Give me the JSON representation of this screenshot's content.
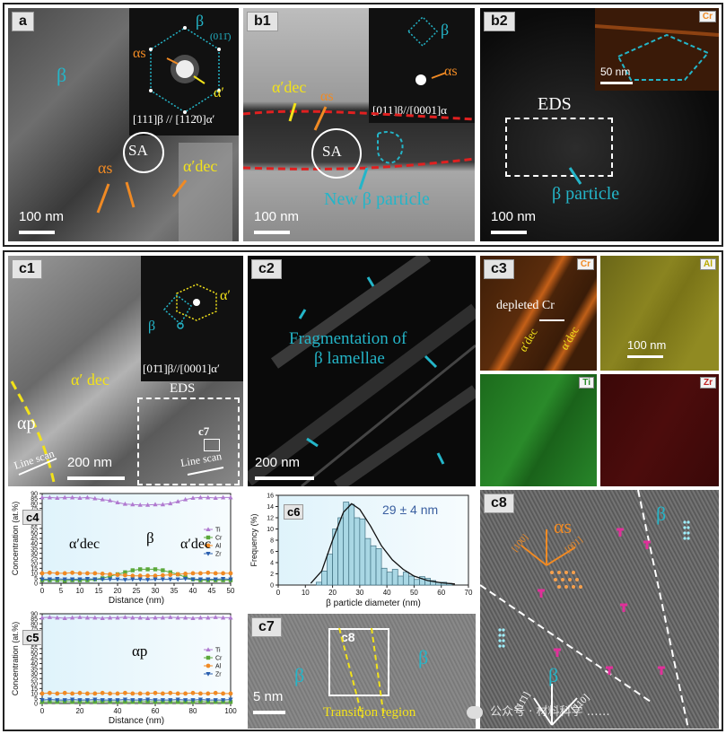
{
  "panels": {
    "a": {
      "tag": "a",
      "phase_beta": "β",
      "sa": "SA",
      "alpha_s": "αs",
      "alpha_prime": "α′",
      "alpha_dec": "α′dec",
      "saed_beta": "β",
      "saed_plane": "(011̄)",
      "saed_zone": "[111]β // [112̄0]α′",
      "scale": "100 nm"
    },
    "b1": {
      "tag": "b1",
      "alpha_dec": "α′dec",
      "alpha_s": "αs",
      "sa": "SA",
      "new_beta": "New β particle",
      "saed_beta": "β",
      "saed_alpha_s": "αs",
      "saed_zone": "[011]β//[0001]α",
      "scale": "100 nm"
    },
    "b2": {
      "tag": "b2",
      "eds": "EDS",
      "beta_particle": "β particle",
      "inset_element": "Cr",
      "inset_scale": "50 nm",
      "scale": "100 nm"
    },
    "c1": {
      "tag": "c1",
      "alpha_dec": "α′ dec",
      "alpha_p": "αp",
      "eds": "EDS",
      "c7": "c7",
      "line_scan": "Line scan",
      "line_scan_2": "Line scan",
      "saed_alpha": "α′",
      "saed_beta": "β",
      "saed_zone": "[01̄1]β//[0001]α′",
      "scale": "200 nm"
    },
    "c2": {
      "tag": "c2",
      "caption_line1": "Fragmentation of",
      "caption_line2": "β lamellae",
      "scale": "200 nm"
    },
    "c3": {
      "tag": "c3",
      "depleted": "depleted Cr",
      "alpha_dec_1": "α′dec",
      "alpha_dec_2": "α′dec",
      "elements": [
        "Cr",
        "Al",
        "Ti",
        "Zr"
      ],
      "scale": "100 nm"
    },
    "c4": {
      "tag": "c4",
      "lbl_left": "α′dec",
      "lbl_mid": "β",
      "lbl_right": "α′dec"
    },
    "c5": {
      "tag": "c5",
      "lbl_mid": "αp"
    },
    "c6": {
      "tag": "c6",
      "annotation": "29 ± 4 nm"
    },
    "c7": {
      "tag": "c7",
      "inner": "c8",
      "beta_left": "β",
      "beta_right": "β",
      "transition": "Transition region",
      "scale": "5 nm"
    },
    "c8": {
      "tag": "c8",
      "alpha_s": "αs",
      "beta_top": "β",
      "beta_bottom": "β",
      "dir1": "[100]",
      "dir2": "[001]",
      "dir3": "[11̄1]",
      "dir4": "[110]"
    },
    "watermark": "公众号 · 材料科学 ……"
  },
  "colors": {
    "cyan": "#24b5c8",
    "yellow": "#f2e21a",
    "orange": "#f08a24",
    "red": "#e02020",
    "magenta": "#e0309a",
    "ti": "#b07ad0",
    "cr": "#5aa83a",
    "al": "#f08a24",
    "zr": "#2a5fb0"
  },
  "chart_data": [
    {
      "id": "c4",
      "type": "line",
      "xlabel": "Distance (nm)",
      "ylabel": "Concentration (at.%)",
      "xlim": [
        0,
        50
      ],
      "ylim": [
        0,
        90
      ],
      "xticks": [
        0,
        5,
        10,
        15,
        20,
        25,
        30,
        35,
        40,
        45,
        50
      ],
      "yticks": [
        0,
        5,
        10,
        15,
        20,
        25,
        30,
        35,
        40,
        45,
        50,
        55,
        60,
        65,
        70,
        75,
        80,
        85,
        90
      ],
      "legend": "right",
      "series": [
        {
          "name": "Ti",
          "color": "#b07ad0",
          "marker": "triangle",
          "x": [
            0,
            2,
            4,
            6,
            8,
            10,
            12,
            14,
            16,
            18,
            20,
            22,
            24,
            26,
            28,
            30,
            32,
            34,
            36,
            38,
            40,
            42,
            44,
            46,
            48,
            50
          ],
          "y": [
            86,
            86,
            85.5,
            86,
            86,
            85.5,
            86,
            85,
            84,
            83,
            81,
            79.5,
            79,
            78.5,
            78.5,
            79,
            79,
            80,
            82,
            84,
            85.5,
            86,
            86,
            85.5,
            86,
            86
          ]
        },
        {
          "name": "Cr",
          "color": "#5aa83a",
          "marker": "square",
          "x": [
            0,
            2,
            4,
            6,
            8,
            10,
            12,
            14,
            16,
            18,
            20,
            22,
            24,
            26,
            28,
            30,
            32,
            34,
            36,
            38,
            40,
            42,
            44,
            46,
            48,
            50
          ],
          "y": [
            3,
            3,
            3,
            2.5,
            3,
            3,
            3,
            4,
            5,
            7,
            9,
            11,
            13,
            14,
            14,
            14,
            13,
            11,
            9,
            6,
            4,
            3,
            3,
            3,
            3,
            3
          ]
        },
        {
          "name": "Al",
          "color": "#f08a24",
          "marker": "circle",
          "x": [
            0,
            2,
            4,
            6,
            8,
            10,
            12,
            14,
            16,
            18,
            20,
            22,
            24,
            26,
            28,
            30,
            32,
            34,
            36,
            38,
            40,
            42,
            44,
            46,
            48,
            50
          ],
          "y": [
            10,
            10.5,
            10,
            10,
            10.5,
            10,
            10,
            10,
            9.5,
            9,
            8.5,
            8,
            7.5,
            7.5,
            7.5,
            7.5,
            8,
            8.5,
            9,
            9.5,
            10,
            10,
            10.5,
            10,
            10,
            10
          ]
        },
        {
          "name": "Zr",
          "color": "#2a5fb0",
          "marker": "triangle-down",
          "x": [
            0,
            2,
            4,
            6,
            8,
            10,
            12,
            14,
            16,
            18,
            20,
            22,
            24,
            26,
            28,
            30,
            32,
            34,
            36,
            38,
            40,
            42,
            44,
            46,
            48,
            50
          ],
          "y": [
            4,
            4,
            4.5,
            4,
            4,
            4,
            4.5,
            4,
            4,
            4,
            4,
            3.5,
            4,
            4,
            3.5,
            4,
            4,
            4,
            4,
            4.5,
            4,
            4,
            4,
            4,
            4.5,
            4
          ]
        }
      ]
    },
    {
      "id": "c5",
      "type": "line",
      "xlabel": "Distance (nm)",
      "ylabel": "Concentration (at.%)",
      "xlim": [
        0,
        100
      ],
      "ylim": [
        0,
        90
      ],
      "xticks": [
        0,
        20,
        40,
        60,
        80,
        100
      ],
      "yticks": [
        0,
        5,
        10,
        15,
        20,
        25,
        30,
        35,
        40,
        45,
        50,
        55,
        60,
        65,
        70,
        75,
        80,
        85,
        90
      ],
      "legend": "right",
      "series": [
        {
          "name": "Ti",
          "color": "#b07ad0",
          "marker": "triangle",
          "x": [
            0,
            4,
            8,
            12,
            16,
            20,
            24,
            28,
            32,
            36,
            40,
            44,
            48,
            52,
            56,
            60,
            64,
            68,
            72,
            76,
            80,
            84,
            88,
            92,
            96,
            100
          ],
          "y": [
            86,
            86.5,
            86,
            85.5,
            86,
            86.5,
            86,
            86,
            85.5,
            86,
            86,
            86.5,
            86,
            86,
            85.5,
            86,
            86,
            86.5,
            86,
            86,
            85.5,
            86,
            86,
            86.5,
            86,
            86
          ]
        },
        {
          "name": "Cr",
          "color": "#5aa83a",
          "marker": "square",
          "x": [
            0,
            4,
            8,
            12,
            16,
            20,
            24,
            28,
            32,
            36,
            40,
            44,
            48,
            52,
            56,
            60,
            64,
            68,
            72,
            76,
            80,
            84,
            88,
            92,
            96,
            100
          ],
          "y": [
            1.5,
            1.5,
            1.5,
            2,
            1.5,
            1.5,
            1.5,
            1.5,
            2,
            1.5,
            1.5,
            1.5,
            1.5,
            1.5,
            2,
            1.5,
            1.5,
            1.5,
            1.5,
            1.5,
            1.5,
            2,
            1.5,
            1.5,
            1.5,
            1.5
          ]
        },
        {
          "name": "Al",
          "color": "#f08a24",
          "marker": "circle",
          "x": [
            0,
            4,
            8,
            12,
            16,
            20,
            24,
            28,
            32,
            36,
            40,
            44,
            48,
            52,
            56,
            60,
            64,
            68,
            72,
            76,
            80,
            84,
            88,
            92,
            96,
            100
          ],
          "y": [
            10,
            10.5,
            10,
            10.5,
            10,
            10.5,
            10,
            10,
            10.5,
            10,
            10,
            10.5,
            10,
            10,
            10,
            10.5,
            10,
            10.5,
            10,
            10,
            10.5,
            10,
            10,
            10.5,
            10,
            10
          ]
        },
        {
          "name": "Zr",
          "color": "#2a5fb0",
          "marker": "triangle-down",
          "x": [
            0,
            4,
            8,
            12,
            16,
            20,
            24,
            28,
            32,
            36,
            40,
            44,
            48,
            52,
            56,
            60,
            64,
            68,
            72,
            76,
            80,
            84,
            88,
            92,
            96,
            100
          ],
          "y": [
            3.5,
            4,
            3.5,
            3.5,
            4,
            3.5,
            3.5,
            4,
            3.5,
            3.5,
            3.5,
            4,
            3.5,
            3.5,
            4,
            3.5,
            3.5,
            3.5,
            4,
            3.5,
            3.5,
            4,
            3.5,
            3.5,
            3.5,
            4
          ]
        }
      ]
    },
    {
      "id": "c6",
      "type": "bar",
      "xlabel": "β particle diameter (nm)",
      "ylabel": "Frequency (%)",
      "xlim": [
        0,
        70
      ],
      "ylim": [
        0,
        16
      ],
      "xticks": [
        0,
        10,
        20,
        30,
        40,
        50,
        60,
        70
      ],
      "yticks": [
        0,
        2,
        4,
        6,
        8,
        10,
        12,
        14,
        16
      ],
      "bin_width": 2,
      "bins": [
        14,
        16,
        18,
        20,
        22,
        24,
        26,
        28,
        30,
        32,
        34,
        36,
        38,
        40,
        42,
        44,
        46,
        48,
        50,
        52,
        54,
        56,
        58,
        60,
        62
      ],
      "values": [
        0.5,
        2.5,
        5.5,
        10,
        12,
        14.8,
        14.4,
        12,
        11.8,
        8.3,
        7,
        6.5,
        3,
        2.3,
        2.8,
        1.6,
        2.3,
        1.6,
        1,
        1.5,
        1.2,
        0.8,
        0.5,
        0.5,
        0.3
      ],
      "fit": "lognormal",
      "fit_mean": 29,
      "fit_sd": 4,
      "fit_curve": {
        "x": [
          12,
          16,
          20,
          24,
          27,
          30,
          34,
          38,
          42,
          46,
          50,
          55,
          60,
          65
        ],
        "y": [
          0.3,
          2.5,
          8,
          13,
          14.5,
          13.5,
          10.5,
          7,
          4.5,
          2.8,
          1.6,
          0.8,
          0.4,
          0.2
        ]
      }
    }
  ]
}
